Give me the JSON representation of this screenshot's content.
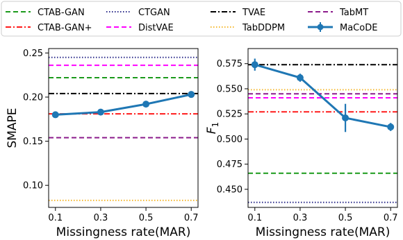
{
  "legend": {
    "entries": [
      {
        "name": "CTAB-GAN",
        "color": "#1a9a1a",
        "dash": "dashed",
        "marker": false
      },
      {
        "name": "CTAB-GAN+",
        "color": "#ff1a1a",
        "dash": "dashdot",
        "marker": false
      },
      {
        "name": "CTGAN",
        "color": "#2b2b8a",
        "dash": "dotted",
        "marker": false
      },
      {
        "name": "DistVAE",
        "color": "#ff00ff",
        "dash": "dashed",
        "marker": false
      },
      {
        "name": "TVAE",
        "color": "#000000",
        "dash": "dashdot",
        "marker": false
      },
      {
        "name": "TabDDPM",
        "color": "#f5b82e",
        "dash": "dotted",
        "marker": false
      },
      {
        "name": "TabMT",
        "color": "#8b1a8b",
        "dash": "dashed",
        "marker": false
      },
      {
        "name": "MaCoDE",
        "color": "#1f77b4",
        "dash": "solid",
        "marker": true
      }
    ],
    "placement": "top",
    "columns": 4
  },
  "chart_data": [
    {
      "type": "line",
      "title": "",
      "xlabel": "Missingness rate(MAR)",
      "ylabel": "SMAPE",
      "xlim": [
        0.07,
        0.73
      ],
      "ylim": [
        0.075,
        0.255
      ],
      "xticks": [
        0.1,
        0.3,
        0.5,
        0.7
      ],
      "xtick_labels": [
        "0.1",
        "0.3",
        "0.5",
        "0.7"
      ],
      "yticks": [
        0.1,
        0.15,
        0.2,
        0.25
      ],
      "ytick_labels": [
        "0.10",
        "0.15",
        "0.20",
        "0.25"
      ],
      "grid": false,
      "baselines": [
        {
          "name": "CTAB-GAN",
          "value": 0.222
        },
        {
          "name": "CTAB-GAN+",
          "value": 0.181
        },
        {
          "name": "CTGAN",
          "value": 0.245
        },
        {
          "name": "DistVAE",
          "value": 0.236
        },
        {
          "name": "TVAE",
          "value": 0.204
        },
        {
          "name": "TabDDPM",
          "value": 0.083
        },
        {
          "name": "TabMT",
          "value": 0.154
        }
      ],
      "series": [
        {
          "name": "MaCoDE",
          "x": [
            0.1,
            0.3,
            0.5,
            0.7
          ],
          "y": [
            0.18,
            0.183,
            0.192,
            0.203
          ],
          "err": [
            0.002,
            0.002,
            0.002,
            0.002
          ]
        }
      ]
    },
    {
      "type": "line",
      "title": "",
      "xlabel": "Missingness rate(MAR)",
      "ylabel": "F",
      "ylabel_sub": "1",
      "xlim": [
        0.07,
        0.73
      ],
      "ylim": [
        0.432,
        0.59
      ],
      "xticks": [
        0.1,
        0.3,
        0.5,
        0.7
      ],
      "xtick_labels": [
        "0.1",
        "0.3",
        "0.5",
        "0.7"
      ],
      "yticks": [
        0.45,
        0.475,
        0.5,
        0.525,
        0.55,
        0.575
      ],
      "ytick_labels": [
        "0.450",
        "0.475",
        "0.500",
        "0.525",
        "0.550",
        "0.575"
      ],
      "grid": false,
      "baselines": [
        {
          "name": "CTAB-GAN",
          "value": 0.466
        },
        {
          "name": "CTAB-GAN+",
          "value": 0.527
        },
        {
          "name": "CTGAN",
          "value": 0.437
        },
        {
          "name": "DistVAE",
          "value": 0.541
        },
        {
          "name": "TVAE",
          "value": 0.574
        },
        {
          "name": "TabDDPM",
          "value": 0.549
        },
        {
          "name": "TabMT",
          "value": 0.545
        }
      ],
      "series": [
        {
          "name": "MaCoDE",
          "x": [
            0.1,
            0.3,
            0.5,
            0.7
          ],
          "y": [
            0.574,
            0.561,
            0.521,
            0.512
          ],
          "err": [
            0.006,
            0.004,
            0.014,
            0.004
          ]
        }
      ]
    }
  ]
}
